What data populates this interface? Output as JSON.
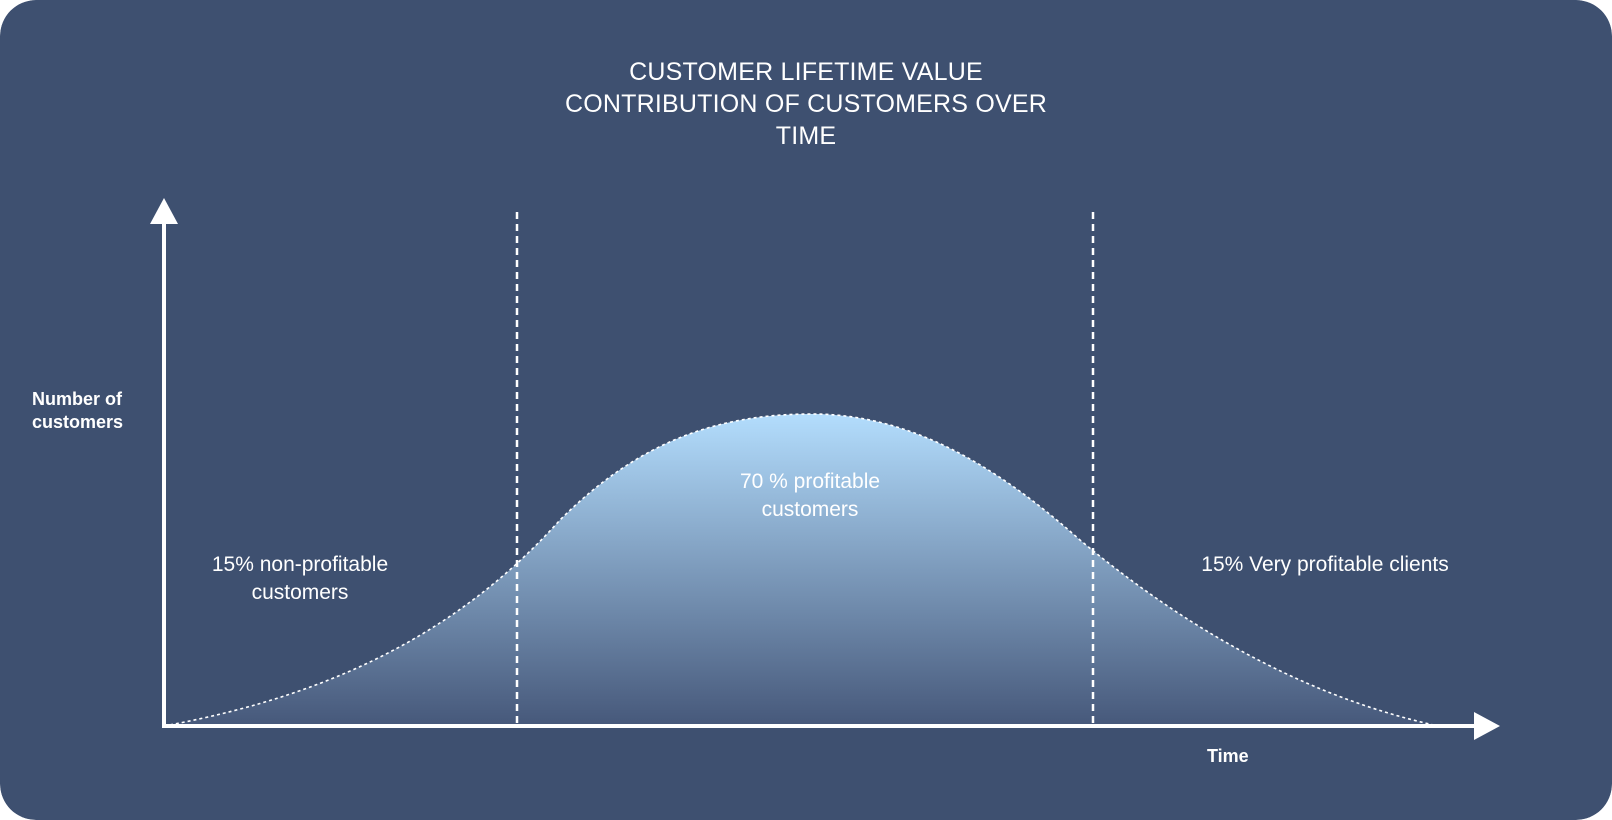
{
  "title": {
    "line1": "CUSTOMER LIFETIME VALUE",
    "line2": "CONTRIBUTION OF CUSTOMERS OVER",
    "line3": "TIME"
  },
  "axes": {
    "y_label_line1": "Number of",
    "y_label_line2": "customers",
    "x_label": "Time"
  },
  "segments": {
    "left": {
      "line1": "15% non-profitable",
      "line2": "customers"
    },
    "middle": {
      "line1": "70 % profitable",
      "line2": "customers"
    },
    "right": {
      "line1": "15% Very profitable clients"
    }
  },
  "colors": {
    "background": "#3e5070",
    "curve_fill_top": "#b3ddfd",
    "curve_fill_bottom": "#46587a",
    "foreground": "#ffffff"
  }
}
